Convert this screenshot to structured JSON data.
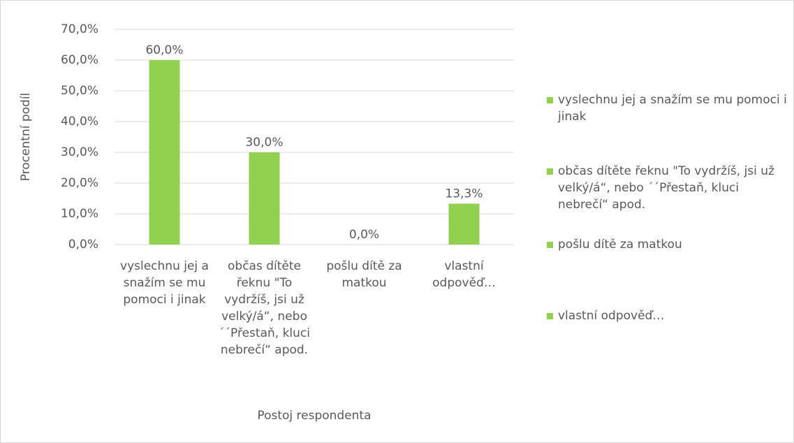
{
  "chart_data": {
    "type": "bar",
    "y_label": "Procentní podíl",
    "x_label": "Postoj respondenta",
    "categories": [
      "vyslechnu jej a snažím se mu pomoci i jinak",
      "občas dítěte řeknu \"To vydržíš, jsi už velký/á“, nebo ´´Přestaň, kluci nebrečí“ apod.",
      "pošlu dítě za matkou",
      "vlastní odpověď…"
    ],
    "values": [
      60,
      30,
      0,
      13.3
    ],
    "value_labels": [
      "60,0%",
      "30,0%",
      "0,0%",
      "13,3%"
    ],
    "color": "#92d050",
    "ylim": [
      0,
      70
    ],
    "yticks": [
      {
        "value": 0,
        "label": "0,0%"
      },
      {
        "value": 10,
        "label": "10,0%"
      },
      {
        "value": 20,
        "label": "20,0%"
      },
      {
        "value": 30,
        "label": "30,0%"
      },
      {
        "value": 40,
        "label": "40,0%"
      },
      {
        "value": 50,
        "label": "50,0%"
      },
      {
        "value": 60,
        "label": "60,0%"
      },
      {
        "value": 70,
        "label": "70,0%"
      }
    ],
    "grid": true,
    "legend": "right"
  }
}
